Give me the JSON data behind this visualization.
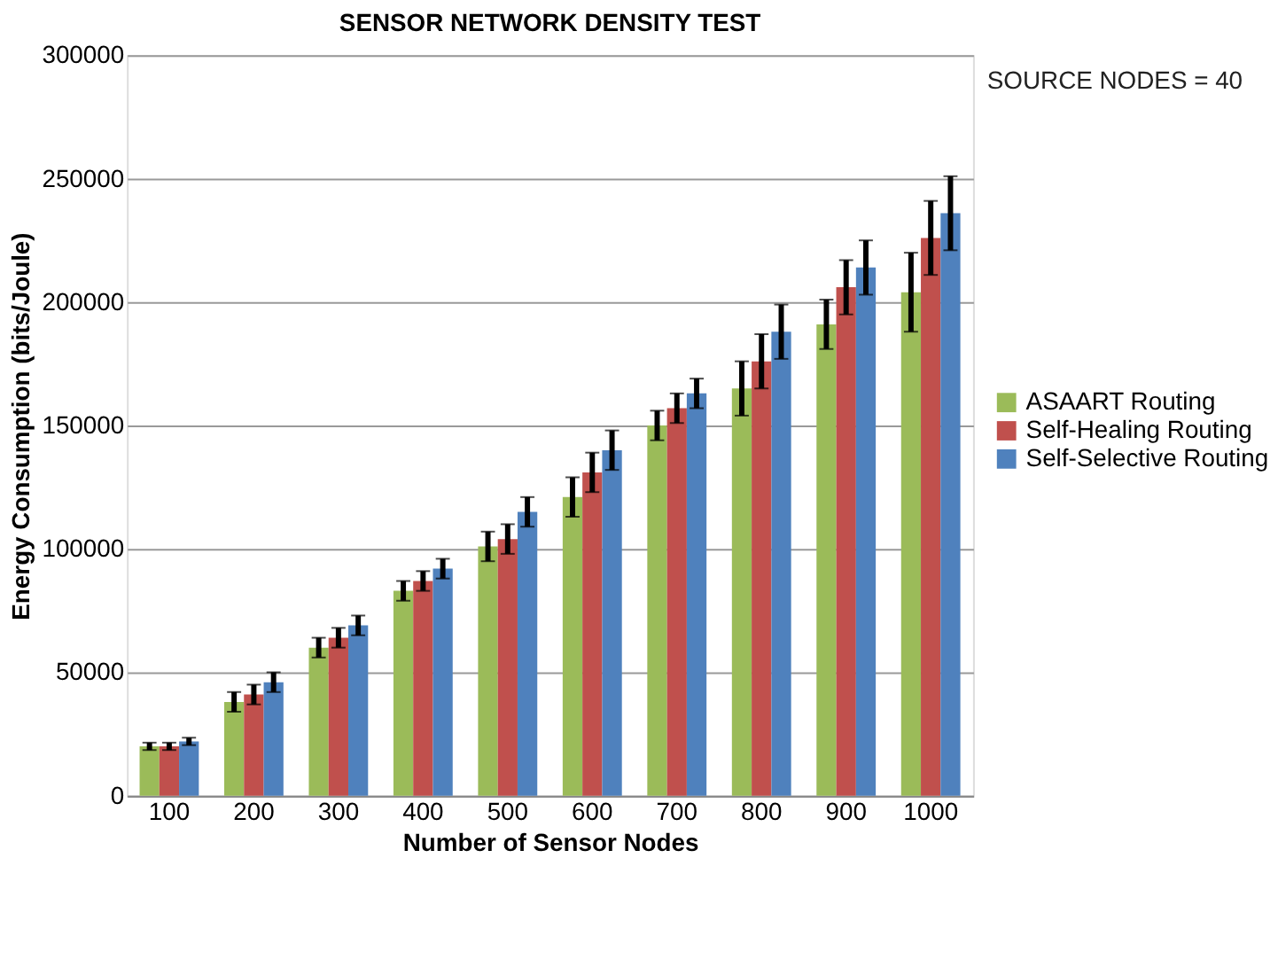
{
  "chart_data": {
    "type": "bar",
    "title": "SENSOR NETWORK DENSITY TEST",
    "xlabel": "Number of Sensor Nodes",
    "ylabel": "Energy Consumption (bits/Joule)",
    "categories": [
      "100",
      "200",
      "300",
      "400",
      "500",
      "600",
      "700",
      "800",
      "900",
      "1000"
    ],
    "series": [
      {
        "name": "ASAART Routing",
        "color": "#9bbb59",
        "values": [
          20000,
          38000,
          60000,
          83000,
          101000,
          121000,
          150000,
          165000,
          191000,
          204000
        ],
        "errors": [
          1500,
          4000,
          4000,
          4000,
          6000,
          8000,
          6000,
          11000,
          10000,
          16000
        ]
      },
      {
        "name": "Self-Healing Routing",
        "color": "#c0504d",
        "values": [
          20000,
          41000,
          64000,
          87000,
          104000,
          131000,
          157000,
          176000,
          206000,
          226000
        ],
        "errors": [
          1500,
          4000,
          4000,
          4000,
          6000,
          8000,
          6000,
          11000,
          11000,
          15000
        ]
      },
      {
        "name": "Self-Selective Routing",
        "color": "#4f81bd",
        "values": [
          22000,
          46000,
          69000,
          92000,
          115000,
          140000,
          163000,
          188000,
          214000,
          236000
        ],
        "errors": [
          1500,
          4000,
          4000,
          4000,
          6000,
          8000,
          6000,
          11000,
          11000,
          15000
        ]
      }
    ],
    "ylim": [
      0,
      300000
    ],
    "yticks": [
      0,
      50000,
      100000,
      150000,
      200000,
      250000,
      300000
    ],
    "grid": "y",
    "legend": "right",
    "annotations": [
      "SOURCE NODES = 40"
    ]
  }
}
